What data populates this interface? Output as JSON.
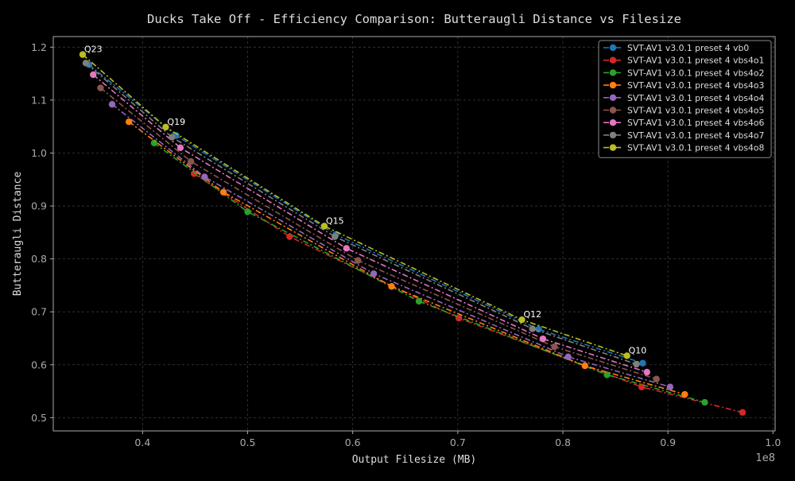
{
  "chart_data": {
    "type": "line",
    "title": "Ducks Take Off - Efficiency Comparison: Butteraugli Distance vs Filesize",
    "xlabel": "Output Filesize (MB)",
    "ylabel": "Butteraugli Distance",
    "x_offset_label": "1e8",
    "xlim": [
      31500000,
      100200000
    ],
    "ylim": [
      0.475,
      1.22
    ],
    "x_ticks": [
      40000000,
      50000000,
      60000000,
      70000000,
      80000000,
      90000000,
      100000000
    ],
    "x_tick_labels": [
      "0.4",
      "0.5",
      "0.6",
      "0.7",
      "0.8",
      "0.9",
      "1.0"
    ],
    "y_ticks": [
      0.5,
      0.6,
      0.7,
      0.8,
      0.9,
      1.0,
      1.1,
      1.2
    ],
    "y_tick_labels": [
      "0.5",
      "0.6",
      "0.7",
      "0.8",
      "0.9",
      "1.0",
      "1.1",
      "1.2"
    ],
    "grid": true,
    "legend_position": "top-right",
    "colors": {
      "background": "#000000",
      "axes_edge": "#aaaaaa",
      "grid": "#3a3a3a",
      "text": "#dddddd"
    },
    "series": [
      {
        "name": "SVT-AV1 v3.0.1 preset 4 vb0",
        "color": "#1f77b4",
        "x": [
          34900000,
          43200000,
          58400000,
          77700000,
          87600000
        ],
        "y": [
          1.167,
          1.033,
          0.846,
          0.667,
          0.603
        ]
      },
      {
        "name": "SVT-AV1 v3.0.1 preset 4 vbs4o1",
        "color": "#d62728",
        "x": [
          44900000,
          54000000,
          70100000,
          87500000,
          97100000
        ],
        "y": [
          0.961,
          0.842,
          0.688,
          0.558,
          0.51
        ]
      },
      {
        "name": "SVT-AV1 v3.0.1 preset 4 vbs4o2",
        "color": "#2ca02c",
        "x": [
          41100000,
          50000000,
          66300000,
          84200000,
          93500000
        ],
        "y": [
          1.019,
          0.889,
          0.72,
          0.581,
          0.529
        ]
      },
      {
        "name": "SVT-AV1 v3.0.1 preset 4 vbs4o3",
        "color": "#ff7f0e",
        "x": [
          38700000,
          47700000,
          63700000,
          82100000,
          91600000
        ],
        "y": [
          1.059,
          0.926,
          0.748,
          0.598,
          0.544
        ]
      },
      {
        "name": "SVT-AV1 v3.0.1 preset 4 vbs4o4",
        "color": "#9467bd",
        "x": [
          37100000,
          45900000,
          62000000,
          80500000,
          90200000
        ],
        "y": [
          1.092,
          0.955,
          0.772,
          0.615,
          0.558
        ]
      },
      {
        "name": "SVT-AV1 v3.0.1 preset 4 vbs4o5",
        "color": "#8c564b",
        "x": [
          36000000,
          44600000,
          60500000,
          79200000,
          88900000
        ],
        "y": [
          1.123,
          0.984,
          0.797,
          0.634,
          0.573
        ]
      },
      {
        "name": "SVT-AV1 v3.0.1 preset 4 vbs4o6",
        "color": "#e377c2",
        "x": [
          35300000,
          43600000,
          59400000,
          78100000,
          88000000
        ],
        "y": [
          1.148,
          1.01,
          0.82,
          0.649,
          0.586
        ]
      },
      {
        "name": "SVT-AV1 v3.0.1 preset 4 vbs4o7",
        "color": "#7f7f7f",
        "x": [
          34600000,
          42800000,
          58300000,
          77100000,
          87000000
        ],
        "y": [
          1.17,
          1.03,
          0.842,
          0.668,
          0.601
        ]
      },
      {
        "name": "SVT-AV1 v3.0.1 preset 4 vbs4o8",
        "color": "#bcbd22",
        "x": [
          34300000,
          42200000,
          57300000,
          76100000,
          86100000
        ],
        "y": [
          1.186,
          1.049,
          0.862,
          0.685,
          0.617
        ]
      }
    ],
    "annotations": [
      {
        "text": "Q23",
        "x": 34300000,
        "y": 1.186
      },
      {
        "text": "Q19",
        "x": 42200000,
        "y": 1.049
      },
      {
        "text": "Q15",
        "x": 57300000,
        "y": 0.862
      },
      {
        "text": "Q12",
        "x": 76100000,
        "y": 0.685
      },
      {
        "text": "Q10",
        "x": 86100000,
        "y": 0.617
      }
    ]
  }
}
